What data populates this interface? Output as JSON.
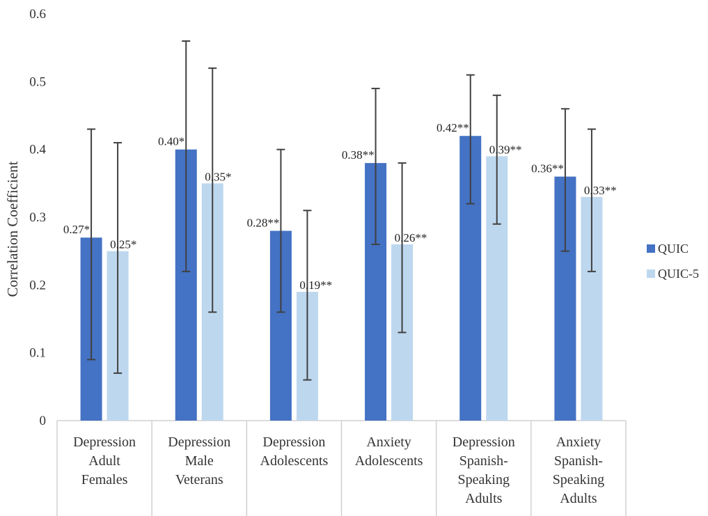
{
  "chart_data": {
    "type": "bar",
    "ylabel": "Correlation Coefficient",
    "ylim": [
      0,
      0.6
    ],
    "yticks": [
      "0",
      "0.1",
      "0.2",
      "0.3",
      "0.4",
      "0.5",
      "0.6"
    ],
    "categories": [
      {
        "lines": [
          "Depression",
          "Adult",
          "Females"
        ]
      },
      {
        "lines": [
          "Depression",
          "Male",
          "Veterans"
        ]
      },
      {
        "lines": [
          "Depression",
          "Adolescents"
        ]
      },
      {
        "lines": [
          "Anxiety",
          "Adolescents"
        ]
      },
      {
        "lines": [
          "Depression",
          "Spanish-",
          "Speaking",
          "Adults"
        ]
      },
      {
        "lines": [
          "Anxiety",
          "Spanish-",
          "Speaking",
          "Adults"
        ]
      }
    ],
    "series": [
      {
        "name": "QUIC",
        "color": "#4472C4",
        "values": [
          0.27,
          0.4,
          0.28,
          0.38,
          0.42,
          0.36
        ],
        "err_low": [
          0.09,
          0.22,
          0.16,
          0.26,
          0.32,
          0.25
        ],
        "err_high": [
          0.43,
          0.56,
          0.4,
          0.49,
          0.51,
          0.46
        ],
        "labels": [
          "0.27*",
          "0.40*",
          "0.28**",
          "0.38**",
          "0.42**",
          "0.36**"
        ]
      },
      {
        "name": "QUIC-5",
        "color": "#BDD7EE",
        "values": [
          0.25,
          0.35,
          0.19,
          0.26,
          0.39,
          0.33
        ],
        "err_low": [
          0.07,
          0.16,
          0.06,
          0.13,
          0.29,
          0.22
        ],
        "err_high": [
          0.41,
          0.52,
          0.31,
          0.38,
          0.48,
          0.43
        ],
        "labels": [
          "0.25*",
          "0.35*",
          "0.19**",
          "0.26**",
          "0.39**",
          "0.33**"
        ]
      }
    ],
    "legend_position": "right",
    "grid": false
  }
}
